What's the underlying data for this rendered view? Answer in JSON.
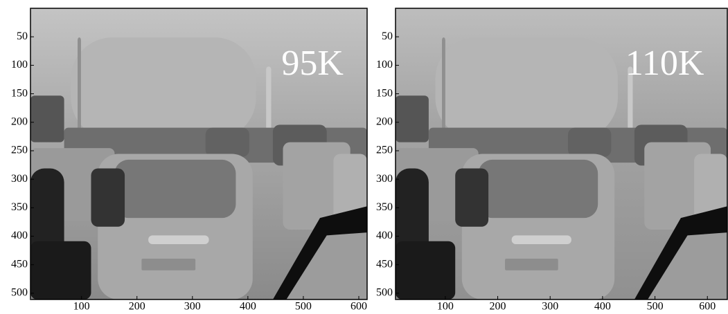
{
  "chart_data": [
    {
      "type": "image",
      "annotation": "95K",
      "xlim": [
        8,
        615
      ],
      "ylim": [
        0,
        511
      ],
      "y_inverted": true,
      "xticks": [
        100,
        200,
        300,
        400,
        500,
        600
      ],
      "yticks": [
        50,
        100,
        150,
        200,
        250,
        300,
        350,
        400,
        450,
        500
      ]
    },
    {
      "type": "image",
      "annotation": "110K",
      "xlim": [
        5,
        638
      ],
      "ylim": [
        0,
        511
      ],
      "y_inverted": true,
      "xticks": [
        100,
        200,
        300,
        400,
        500,
        600
      ],
      "yticks": [
        50,
        100,
        150,
        200,
        250,
        300,
        350,
        400,
        450,
        500
      ]
    }
  ]
}
